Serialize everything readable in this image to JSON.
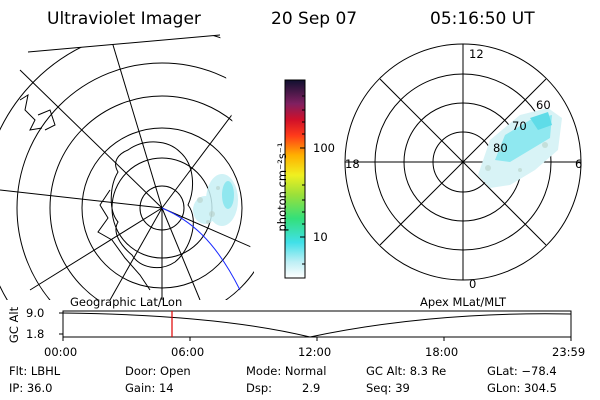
{
  "header": {
    "instrument": "Ultraviolet Imager",
    "date": "20 Sep 07",
    "time": "05:16:50 UT"
  },
  "colorbar": {
    "unit_label": "photon cm⁻²s⁻¹",
    "ticks": [
      "100",
      "10"
    ]
  },
  "geo_map": {
    "label": "Geographic Lat/Lon"
  },
  "polar_map": {
    "label": "Apex MLat/MLT",
    "mlt_labels": [
      "12",
      "18",
      "6",
      "0"
    ],
    "lat_labels": [
      "60",
      "70",
      "80"
    ]
  },
  "timeline": {
    "axis_label": "GC Alt",
    "y_ticks": [
      "9.0",
      "1.8"
    ],
    "x_ticks": [
      "00:00",
      "06:00",
      "12:00",
      "18:00",
      "23:59"
    ],
    "marker_time": "05:16:50"
  },
  "footer": {
    "filter": "Flt: LBHL",
    "ip": "IP: 36.0",
    "door": "Door: Open",
    "gain": "Gain: 14",
    "mode": "Mode: Normal",
    "dsp_label": "Dsp:",
    "dsp_value": "2.9",
    "gc_alt": "GC Alt: 8.3 Re",
    "seq": "Seq: 39",
    "glat": "GLat: −78.4",
    "glon": "GLon: 304.5"
  }
}
